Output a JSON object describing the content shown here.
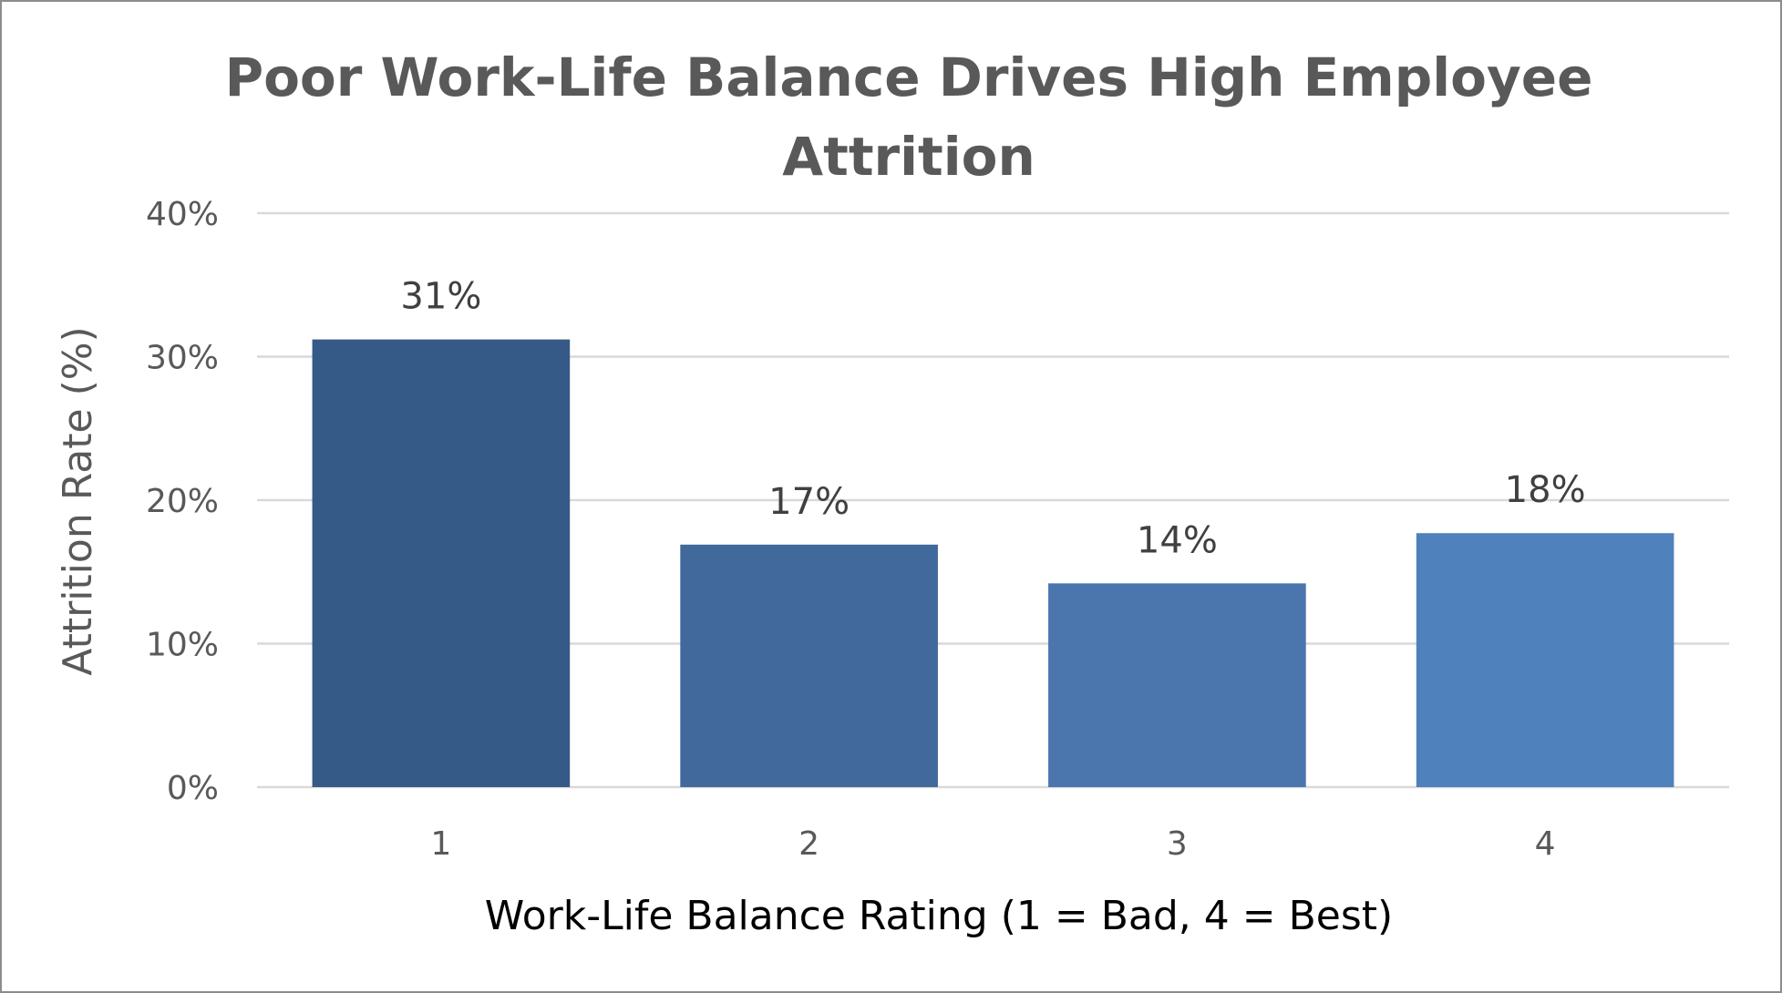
{
  "chart_data": {
    "type": "bar",
    "title_lines": [
      "Poor Work-Life Balance Drives High Employee",
      "Attrition"
    ],
    "categories": [
      "1",
      "2",
      "3",
      "4"
    ],
    "values": [
      31.2,
      16.9,
      14.2,
      17.7
    ],
    "data_labels": [
      "31%",
      "17%",
      "14%",
      "18%"
    ],
    "xlabel": "Work-Life Balance Rating (1 = Bad, 4 = Best)",
    "ylabel": "Attrition Rate (%)",
    "ylim": [
      0,
      40
    ],
    "yticks": [
      0,
      10,
      20,
      30,
      40
    ],
    "ytick_labels": [
      "0%",
      "10%",
      "20%",
      "30%",
      "40%"
    ],
    "grid": true,
    "legend": "none",
    "colors": [
      "#355a87",
      "#41699c",
      "#4a76ad",
      "#4f81bd"
    ],
    "gridline_color": "#d9d9d9",
    "ylabel_color": "#595959",
    "xlabel_color": "#000000"
  }
}
